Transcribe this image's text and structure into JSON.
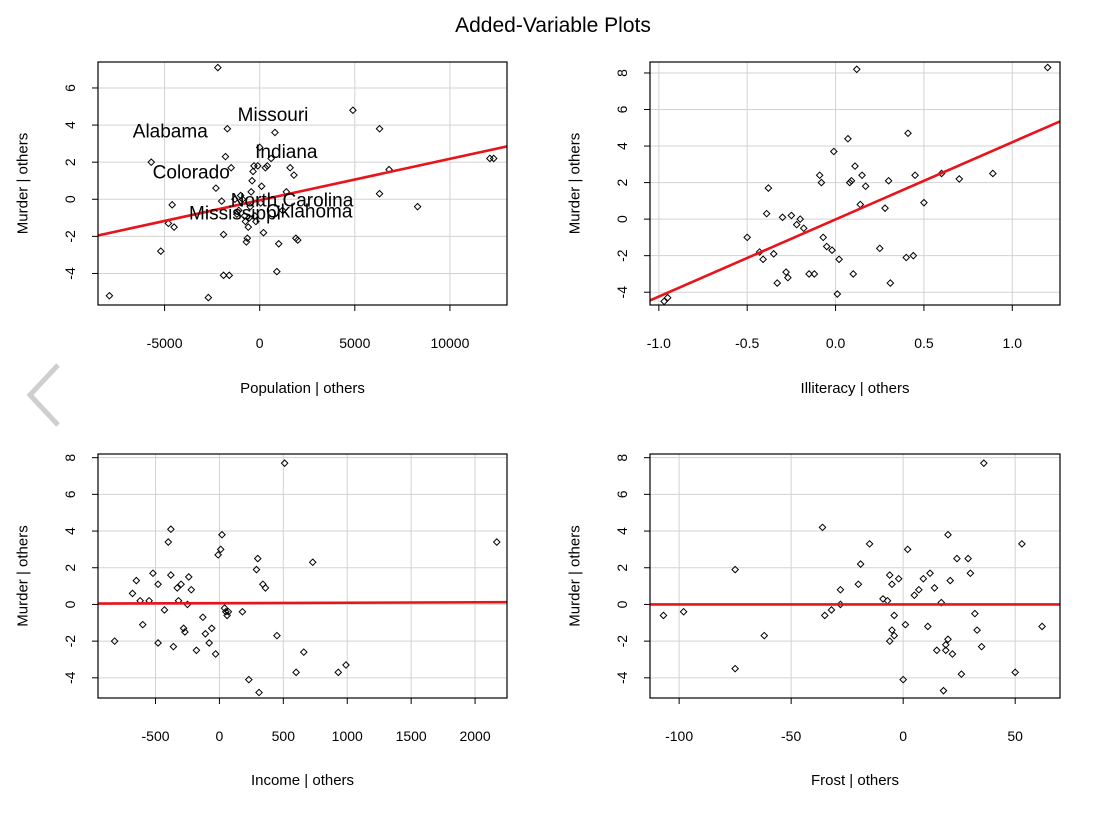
{
  "title": "Added-Variable Plots",
  "colors": {
    "fit_line": "#e8141b",
    "grid": "#d3d3d3",
    "points": "#000000",
    "nav_arrow": "#cfcfcf"
  },
  "icons": {
    "back": "chevron-left-icon"
  },
  "chart_data": [
    {
      "type": "scatter",
      "xlabel": "Population | others",
      "ylabel": "Murder  | others",
      "xlim": [
        -8500,
        13000
      ],
      "ylim": [
        -5.7,
        7.4
      ],
      "xticks": [
        -5000,
        0,
        5000,
        10000
      ],
      "yticks": [
        -4,
        -2,
        0,
        2,
        4,
        6
      ],
      "grid": true,
      "fit_line": [
        [
          -8500,
          -1.95
        ],
        [
          13000,
          2.85
        ]
      ],
      "points": [
        [
          -7900,
          -5.2
        ],
        [
          -5700,
          2
        ],
        [
          -5200,
          -2.8
        ],
        [
          -4800,
          -1.3
        ],
        [
          -4600,
          -0.3
        ],
        [
          -4500,
          -1.5
        ],
        [
          -2200,
          7.1
        ],
        [
          -2300,
          0.6
        ],
        [
          -2700,
          -5.3
        ],
        [
          -2000,
          -0.1
        ],
        [
          -1900,
          -1.9
        ],
        [
          -1900,
          -4.1
        ],
        [
          -1800,
          2.3
        ],
        [
          -1700,
          3.8
        ],
        [
          -1600,
          -4.1
        ],
        [
          -1500,
          1.7
        ],
        [
          -1300,
          0
        ],
        [
          -1200,
          -0.8
        ],
        [
          -1100,
          -0.6
        ],
        [
          -1000,
          0.2
        ],
        [
          -900,
          0
        ],
        [
          -800,
          -0.9
        ],
        [
          -750,
          -1.2
        ],
        [
          -700,
          -2.3
        ],
        [
          -650,
          -2.1
        ],
        [
          -600,
          -1.5
        ],
        [
          -550,
          -1
        ],
        [
          -500,
          -0.4
        ],
        [
          -450,
          0.4
        ],
        [
          -400,
          1
        ],
        [
          -350,
          1.5
        ],
        [
          -300,
          1.8
        ],
        [
          -250,
          -0.9
        ],
        [
          -200,
          -1.2
        ],
        [
          -100,
          1.8
        ],
        [
          0,
          2.8
        ],
        [
          50,
          -0.2
        ],
        [
          100,
          0.7
        ],
        [
          200,
          -1.8
        ],
        [
          300,
          1.7
        ],
        [
          400,
          1.8
        ],
        [
          600,
          2.2
        ],
        [
          800,
          3.6
        ],
        [
          900,
          -3.9
        ],
        [
          1000,
          -2.4
        ],
        [
          1200,
          -0.6
        ],
        [
          1400,
          0.4
        ],
        [
          1600,
          1.7
        ],
        [
          1800,
          1.3
        ],
        [
          1900,
          -2.1
        ],
        [
          2000,
          -2.2
        ],
        [
          4900,
          4.8
        ],
        [
          6300,
          3.8
        ],
        [
          6300,
          0.3
        ],
        [
          6800,
          1.6
        ],
        [
          8300,
          -0.4
        ],
        [
          12100,
          2.2
        ],
        [
          12300,
          2.2
        ]
      ],
      "annotations": [
        {
          "text": "Alabama",
          "x": -4700,
          "y": 3.7
        },
        {
          "text": "Missouri",
          "x": 700,
          "y": 4.6
        },
        {
          "text": "Indiana",
          "x": 1400,
          "y": 2.6
        },
        {
          "text": "Colorado",
          "x": -3600,
          "y": 1.5
        },
        {
          "text": "North Carolina",
          "x": 1700,
          "y": 0
        },
        {
          "text": "Oklahoma",
          "x": 2600,
          "y": -0.6
        },
        {
          "text": "Mississippi",
          "x": -1300,
          "y": -0.7
        }
      ]
    },
    {
      "type": "scatter",
      "xlabel": "Illiteracy | others",
      "ylabel": "Murder  | others",
      "xlim": [
        -1.05,
        1.27
      ],
      "ylim": [
        -4.7,
        8.6
      ],
      "xticks": [
        -1.0,
        -0.5,
        0.0,
        0.5,
        1.0
      ],
      "xtick_labels": [
        "-1.0",
        "-0.5",
        "0.0",
        "0.5",
        "1.0"
      ],
      "yticks": [
        -4,
        -2,
        0,
        2,
        4,
        6,
        8
      ],
      "grid": true,
      "fit_line": [
        [
          -1.05,
          -4.45
        ],
        [
          1.27,
          5.35
        ]
      ],
      "points": [
        [
          -0.97,
          -4.5
        ],
        [
          -0.95,
          -4.3
        ],
        [
          -0.5,
          -1
        ],
        [
          -0.43,
          -1.8
        ],
        [
          -0.41,
          -2.2
        ],
        [
          -0.39,
          0.3
        ],
        [
          -0.38,
          1.7
        ],
        [
          -0.35,
          -1.9
        ],
        [
          -0.33,
          -3.5
        ],
        [
          -0.3,
          0.1
        ],
        [
          -0.28,
          -2.9
        ],
        [
          -0.27,
          -3.2
        ],
        [
          -0.25,
          0.2
        ],
        [
          -0.22,
          -0.3
        ],
        [
          -0.2,
          0
        ],
        [
          -0.18,
          -0.5
        ],
        [
          -0.15,
          -3
        ],
        [
          -0.12,
          -3
        ],
        [
          -0.09,
          2.4
        ],
        [
          -0.08,
          2
        ],
        [
          -0.07,
          -1
        ],
        [
          -0.05,
          -1.5
        ],
        [
          -0.02,
          -1.7
        ],
        [
          -0.01,
          3.7
        ],
        [
          0.01,
          -4.1
        ],
        [
          0.02,
          -2.2
        ],
        [
          0.07,
          4.4
        ],
        [
          0.08,
          2
        ],
        [
          0.09,
          2.1
        ],
        [
          0.1,
          -3
        ],
        [
          0.11,
          2.9
        ],
        [
          0.12,
          8.2
        ],
        [
          0.14,
          0.8
        ],
        [
          0.15,
          2.4
        ],
        [
          0.17,
          1.8
        ],
        [
          0.25,
          -1.6
        ],
        [
          0.28,
          0.6
        ],
        [
          0.3,
          2.1
        ],
        [
          0.31,
          -3.5
        ],
        [
          0.4,
          -2.1
        ],
        [
          0.41,
          4.7
        ],
        [
          0.44,
          -2
        ],
        [
          0.45,
          2.4
        ],
        [
          0.5,
          0.9
        ],
        [
          0.6,
          2.5
        ],
        [
          0.7,
          2.2
        ],
        [
          0.89,
          2.5
        ],
        [
          1.2,
          8.3
        ]
      ]
    },
    {
      "type": "scatter",
      "xlabel": "Income | others",
      "ylabel": "Murder  | others",
      "xlim": [
        -950,
        2250
      ],
      "ylim": [
        -5.1,
        8.2
      ],
      "xticks": [
        -500,
        0,
        500,
        1000,
        1500,
        2000
      ],
      "yticks": [
        -4,
        -2,
        0,
        2,
        4,
        6,
        8
      ],
      "grid": true,
      "fit_line": [
        [
          -950,
          0.05
        ],
        [
          2250,
          0.12
        ]
      ],
      "points": [
        [
          -820,
          -2
        ],
        [
          -680,
          0.6
        ],
        [
          -650,
          1.3
        ],
        [
          -620,
          0.2
        ],
        [
          -600,
          -1.1
        ],
        [
          -550,
          0.2
        ],
        [
          -520,
          1.7
        ],
        [
          -480,
          1.1
        ],
        [
          -480,
          -2.1
        ],
        [
          -430,
          -0.3
        ],
        [
          -400,
          3.4
        ],
        [
          -380,
          4.1
        ],
        [
          -380,
          1.6
        ],
        [
          -360,
          -2.3
        ],
        [
          -330,
          0.9
        ],
        [
          -320,
          0.2
        ],
        [
          -300,
          1.1
        ],
        [
          -280,
          -1.3
        ],
        [
          -270,
          -1.5
        ],
        [
          -250,
          0
        ],
        [
          -240,
          1.5
        ],
        [
          -220,
          0.8
        ],
        [
          -180,
          -2.5
        ],
        [
          -130,
          -0.7
        ],
        [
          -110,
          -1.6
        ],
        [
          -80,
          -2.1
        ],
        [
          -60,
          -1.3
        ],
        [
          -30,
          -2.7
        ],
        [
          -10,
          2.7
        ],
        [
          10,
          3
        ],
        [
          20,
          3.8
        ],
        [
          40,
          -0.2
        ],
        [
          50,
          -0.4
        ],
        [
          60,
          -0.6
        ],
        [
          70,
          -0.4
        ],
        [
          180,
          -0.4
        ],
        [
          230,
          -4.1
        ],
        [
          290,
          1.9
        ],
        [
          300,
          2.5
        ],
        [
          310,
          -4.8
        ],
        [
          340,
          1.1
        ],
        [
          360,
          0.9
        ],
        [
          450,
          -1.7
        ],
        [
          510,
          7.7
        ],
        [
          600,
          -3.7
        ],
        [
          660,
          -2.6
        ],
        [
          730,
          2.3
        ],
        [
          930,
          -3.7
        ],
        [
          990,
          -3.3
        ],
        [
          2170,
          3.4
        ]
      ]
    },
    {
      "type": "scatter",
      "xlabel": "Frost | others",
      "ylabel": "Murder  | others",
      "xlim": [
        -113,
        70
      ],
      "ylim": [
        -5.1,
        8.2
      ],
      "xticks": [
        -100,
        -50,
        0,
        50
      ],
      "yticks": [
        -4,
        -2,
        0,
        2,
        4,
        6,
        8
      ],
      "grid": true,
      "fit_line": [
        [
          -113,
          0
        ],
        [
          70,
          0
        ]
      ],
      "points": [
        [
          -107,
          -0.6
        ],
        [
          -98,
          -0.4
        ],
        [
          -75,
          1.9
        ],
        [
          -75,
          -3.5
        ],
        [
          -62,
          -1.7
        ],
        [
          -36,
          4.2
        ],
        [
          -35,
          -0.6
        ],
        [
          -32,
          -0.3
        ],
        [
          -28,
          0
        ],
        [
          -28,
          0.8
        ],
        [
          -20,
          1.1
        ],
        [
          -19,
          2.2
        ],
        [
          -15,
          3.3
        ],
        [
          -9,
          0.3
        ],
        [
          -7,
          0.2
        ],
        [
          -6,
          1.6
        ],
        [
          -6,
          -2
        ],
        [
          -5,
          1.1
        ],
        [
          -5,
          -1.4
        ],
        [
          -4,
          -0.6
        ],
        [
          -4,
          -1.7
        ],
        [
          -2,
          1.4
        ],
        [
          0,
          -4.1
        ],
        [
          1,
          -1.1
        ],
        [
          2,
          3
        ],
        [
          5,
          0.5
        ],
        [
          7,
          0.8
        ],
        [
          9,
          1.4
        ],
        [
          11,
          -1.2
        ],
        [
          12,
          1.7
        ],
        [
          14,
          0.9
        ],
        [
          15,
          -2.5
        ],
        [
          17,
          0.1
        ],
        [
          18,
          -4.7
        ],
        [
          19,
          -2.2
        ],
        [
          19,
          -2.5
        ],
        [
          20,
          3.8
        ],
        [
          20,
          -1.9
        ],
        [
          21,
          1.3
        ],
        [
          22,
          -2.7
        ],
        [
          24,
          2.5
        ],
        [
          26,
          -3.8
        ],
        [
          29,
          2.5
        ],
        [
          30,
          1.7
        ],
        [
          32,
          -0.5
        ],
        [
          33,
          -1.4
        ],
        [
          35,
          -2.3
        ],
        [
          36,
          7.7
        ],
        [
          50,
          -3.7
        ],
        [
          53,
          3.3
        ],
        [
          62,
          -1.2
        ]
      ]
    }
  ]
}
